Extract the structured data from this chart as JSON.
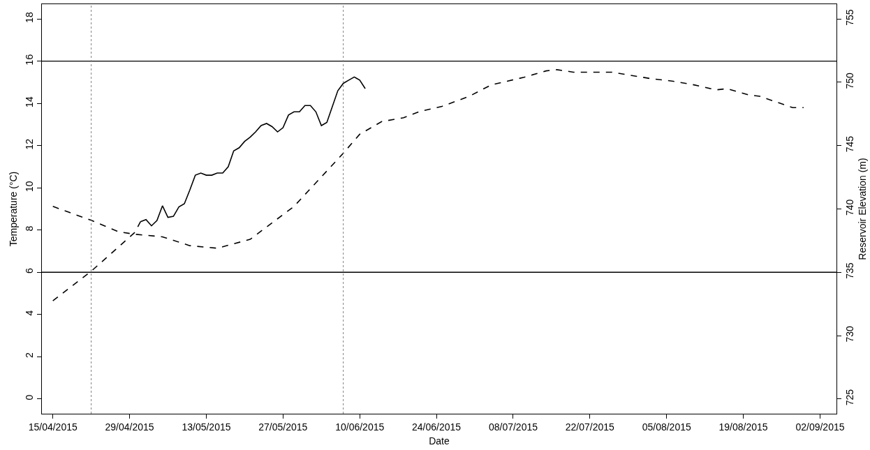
{
  "chart_data": {
    "type": "line",
    "xlabel": "Date",
    "ylabel": "Temperature (°C)",
    "y2label": "Reservoir Elevation (m)",
    "series": [
      {
        "color": "#000000",
        "line_style": "dashed",
        "x": [
          "2015-04-15",
          "2015-04-22",
          "2015-04-30",
          "2015-05-01"
        ],
        "values": [
          4.65,
          6.05,
          7.9,
          8.4
        ]
      },
      {
        "color": "#000000",
        "line_style": "solid",
        "x": [
          "2015-05-01",
          "2015-05-02",
          "2015-05-03",
          "2015-05-04",
          "2015-05-05",
          "2015-05-06",
          "2015-05-07",
          "2015-05-08",
          "2015-05-09",
          "2015-05-10",
          "2015-05-11",
          "2015-05-12",
          "2015-05-13",
          "2015-05-14",
          "2015-05-15",
          "2015-05-16",
          "2015-05-17",
          "2015-05-18",
          "2015-05-19",
          "2015-05-20",
          "2015-05-21",
          "2015-05-22",
          "2015-05-23",
          "2015-05-24",
          "2015-05-25",
          "2015-05-26",
          "2015-05-27",
          "2015-05-28",
          "2015-05-29",
          "2015-05-30",
          "2015-05-31",
          "2015-06-01",
          "2015-06-02",
          "2015-06-03",
          "2015-06-04",
          "2015-06-05",
          "2015-06-06",
          "2015-06-07",
          "2015-06-08",
          "2015-06-09",
          "2015-06-10",
          "2015-06-11"
        ],
        "values": [
          8.4,
          8.5,
          8.2,
          8.45,
          9.15,
          8.6,
          8.65,
          9.1,
          9.25,
          9.9,
          10.6,
          10.7,
          10.6,
          10.6,
          10.7,
          10.7,
          11.0,
          11.75,
          11.9,
          12.2,
          12.4,
          12.65,
          12.95,
          13.05,
          12.9,
          12.65,
          12.85,
          13.45,
          13.6,
          13.6,
          13.9,
          13.9,
          13.6,
          12.95,
          13.1,
          13.85,
          14.6,
          14.95,
          15.1,
          15.25,
          15.1,
          14.7
        ]
      },
      {
        "color": "#000000",
        "line_style": "dashed",
        "axis": "y2",
        "x": [
          "2015-04-15",
          "2015-04-22",
          "2015-04-27",
          "2015-04-30",
          "2015-05-05",
          "2015-05-10",
          "2015-05-15",
          "2015-05-21",
          "2015-05-29",
          "2015-06-07",
          "2015-06-10",
          "2015-06-14",
          "2015-06-18",
          "2015-06-21",
          "2015-06-25",
          "2015-06-30",
          "2015-07-04",
          "2015-07-10",
          "2015-07-14",
          "2015-07-16",
          "2015-07-19",
          "2015-07-26",
          "2015-08-02",
          "2015-08-06",
          "2015-08-10",
          "2015-08-14",
          "2015-08-16",
          "2015-08-20",
          "2015-08-22",
          "2015-08-28",
          "2015-08-30"
        ],
        "values": [
          740.2,
          739.1,
          738.2,
          738.0,
          737.8,
          737.1,
          736.9,
          737.6,
          740.2,
          744.4,
          745.9,
          746.9,
          747.2,
          747.7,
          748.1,
          748.9,
          749.8,
          750.4,
          750.9,
          751.0,
          750.8,
          750.8,
          750.3,
          750.1,
          749.8,
          749.4,
          749.5,
          749.0,
          748.9,
          748.0,
          748.0
        ]
      }
    ],
    "xlim": [
      "2015-04-13",
      "2015-09-05"
    ],
    "xticks": [
      {
        "value": "2015-04-15",
        "label": "15/04/2015"
      },
      {
        "value": "2015-04-29",
        "label": "29/04/2015"
      },
      {
        "value": "2015-05-13",
        "label": "13/05/2015"
      },
      {
        "value": "2015-05-27",
        "label": "27/05/2015"
      },
      {
        "value": "2015-06-10",
        "label": "10/06/2015"
      },
      {
        "value": "2015-06-24",
        "label": "24/06/2015"
      },
      {
        "value": "2015-07-08",
        "label": "08/07/2015"
      },
      {
        "value": "2015-07-22",
        "label": "22/07/2015"
      },
      {
        "value": "2015-08-05",
        "label": "05/08/2015"
      },
      {
        "value": "2015-08-19",
        "label": "19/08/2015"
      },
      {
        "value": "2015-09-02",
        "label": "02/09/2015"
      }
    ],
    "ylim": [
      -0.7,
      18.7
    ],
    "yticks": [
      0,
      2,
      4,
      6,
      8,
      10,
      12,
      14,
      16,
      18
    ],
    "y2lim": [
      723.83,
      756.17
    ],
    "y2ticks": [
      725,
      730,
      735,
      740,
      745,
      750,
      755
    ],
    "ref_lines": [
      {
        "axis": "y",
        "value": 16,
        "color": "#000000",
        "line_style": "solid"
      },
      {
        "axis": "y",
        "value": 6,
        "color": "#000000",
        "line_style": "solid"
      },
      {
        "axis": "x",
        "value": "2015-04-22",
        "color": "#808080",
        "line_style": "dotted"
      },
      {
        "axis": "x",
        "value": "2015-06-07",
        "color": "#808080",
        "line_style": "dotted"
      }
    ],
    "marker": "none"
  }
}
